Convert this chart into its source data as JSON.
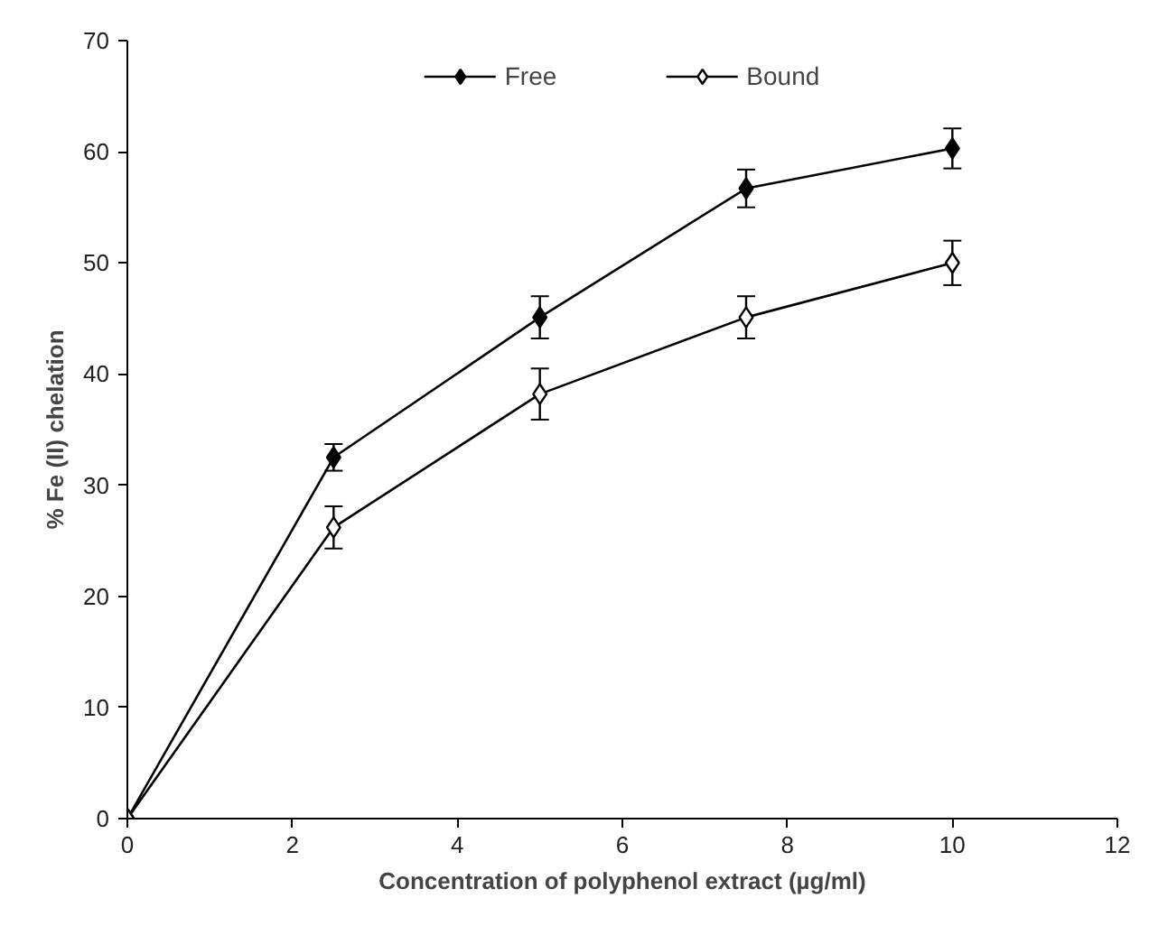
{
  "chart_data": {
    "type": "line",
    "xlabel": "Concentration of polyphenol extract (µg/ml)",
    "ylabel": "% Fe (II) chelation",
    "x": [
      0,
      2.5,
      5,
      7.5,
      10
    ],
    "series": [
      {
        "name": "Free",
        "color": "#000000",
        "marker": "diamond",
        "values": [
          0,
          32.5,
          45.1,
          56.7,
          60.3
        ],
        "errors": [
          null,
          1.2,
          1.9,
          1.7,
          1.8
        ]
      },
      {
        "name": "Bound",
        "color": "#000000",
        "marker": "diamond",
        "values": [
          0,
          26.2,
          38.2,
          45.1,
          50.0
        ],
        "errors": [
          null,
          1.9,
          2.3,
          1.9,
          2.0
        ]
      }
    ],
    "xlim": [
      0,
      12
    ],
    "xticks": [
      0,
      2,
      4,
      6,
      8,
      10,
      12
    ],
    "ylim": [
      0,
      70
    ],
    "yticks": [
      0,
      10,
      20,
      30,
      40,
      50,
      60,
      70
    ],
    "grid": false,
    "legend": "top",
    "line_style": "solid"
  }
}
